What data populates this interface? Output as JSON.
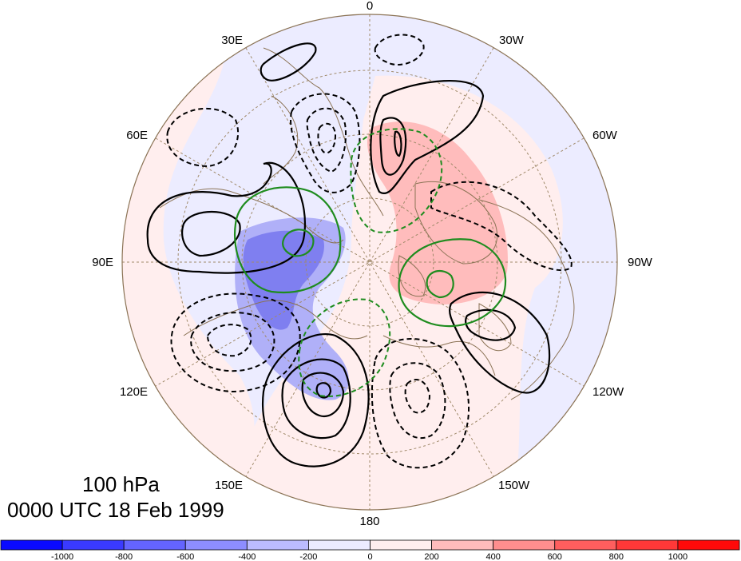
{
  "title": {
    "level": "100 hPa",
    "time": "0000 UTC 18 Feb 1999"
  },
  "longitude_labels": [
    "0",
    "30W",
    "60W",
    "90W",
    "120W",
    "150W",
    "180",
    "150E",
    "120E",
    "90E",
    "60E",
    "30E"
  ],
  "colorbar": {
    "ticks": [
      "-1000",
      "-800",
      "-600",
      "-400",
      "-200",
      "0",
      "200",
      "400",
      "600",
      "800",
      "1000"
    ],
    "colors": [
      "#0a0aff",
      "#3a3aff",
      "#6464ff",
      "#8d8dff",
      "#bcbcff",
      "#ececff",
      "#ffeeee",
      "#ffbcbc",
      "#ff8e8e",
      "#ff5e5e",
      "#ff3838",
      "#ff0a0a"
    ]
  },
  "colors": {
    "coast": "#8b7355",
    "grid": "#a08a6a",
    "contour_black": "#000000",
    "contour_green": "#1e8c1e",
    "shade_neg_strong": "#7f7ff0",
    "shade_neg": "#b0b0f8",
    "shade_neg_weak": "#ececff",
    "shade_pos_weak": "#ffeeee",
    "shade_pos": "#ffbcbc",
    "shade_pos_strong": "#ff9a9a"
  }
}
